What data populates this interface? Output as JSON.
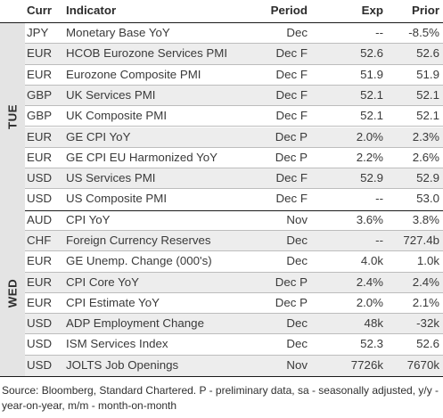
{
  "header": {
    "curr": "Curr",
    "indicator": "Indicator",
    "period": "Period",
    "exp": "Exp",
    "prior": "Prior"
  },
  "groups": [
    {
      "day": "TUE",
      "rows": [
        {
          "curr": "JPY",
          "indicator": "Monetary Base YoY",
          "period": "Dec",
          "exp": "--",
          "prior": "-8.5%"
        },
        {
          "curr": "EUR",
          "indicator": "HCOB Eurozone Services PMI",
          "period": "Dec F",
          "exp": "52.6",
          "prior": "52.6"
        },
        {
          "curr": "EUR",
          "indicator": "Eurozone Composite PMI",
          "period": "Dec F",
          "exp": "51.9",
          "prior": "51.9"
        },
        {
          "curr": "GBP",
          "indicator": "UK Services PMI",
          "period": "Dec F",
          "exp": "52.1",
          "prior": "52.1"
        },
        {
          "curr": "GBP",
          "indicator": "UK Composite PMI",
          "period": "Dec F",
          "exp": "52.1",
          "prior": "52.1"
        },
        {
          "curr": "EUR",
          "indicator": "GE CPI YoY",
          "period": "Dec P",
          "exp": "2.0%",
          "prior": "2.3%"
        },
        {
          "curr": "EUR",
          "indicator": "GE CPI EU Harmonized YoY",
          "period": "Dec P",
          "exp": "2.2%",
          "prior": "2.6%"
        },
        {
          "curr": "USD",
          "indicator": "US Services PMI",
          "period": "Dec F",
          "exp": "52.9",
          "prior": "52.9"
        },
        {
          "curr": "USD",
          "indicator": "US Composite PMI",
          "period": "Dec F",
          "exp": "--",
          "prior": "53.0"
        }
      ]
    },
    {
      "day": "WED",
      "rows": [
        {
          "curr": "AUD",
          "indicator": "CPI YoY",
          "period": "Nov",
          "exp": "3.6%",
          "prior": "3.8%"
        },
        {
          "curr": "CHF",
          "indicator": "Foreign Currency Reserves",
          "period": "Dec",
          "exp": "--",
          "prior": "727.4b"
        },
        {
          "curr": "EUR",
          "indicator": "GE Unemp. Change (000's)",
          "period": "Dec",
          "exp": "4.0k",
          "prior": "1.0k"
        },
        {
          "curr": "EUR",
          "indicator": "CPI Core YoY",
          "period": "Dec P",
          "exp": "2.4%",
          "prior": "2.4%"
        },
        {
          "curr": "EUR",
          "indicator": "CPI Estimate YoY",
          "period": "Dec P",
          "exp": "2.0%",
          "prior": "2.1%"
        },
        {
          "curr": "USD",
          "indicator": "ADP Employment Change",
          "period": "Dec",
          "exp": "48k",
          "prior": "-32k"
        },
        {
          "curr": "USD",
          "indicator": "ISM Services Index",
          "period": "Dec",
          "exp": "52.3",
          "prior": "52.6"
        },
        {
          "curr": "USD",
          "indicator": "JOLTS Job Openings",
          "period": "Nov",
          "exp": "7726k",
          "prior": "7670k"
        }
      ]
    }
  ],
  "footer": {
    "source_note": "Source: Bloomberg, Standard Chartered. P - preliminary data, sa - seasonally adjusted, y/y - year-on-year, m/m - month-on-month"
  },
  "colors": {
    "shade": "#ededed",
    "day_band": "#e4e4e4",
    "rule": "#1a1a1a"
  }
}
